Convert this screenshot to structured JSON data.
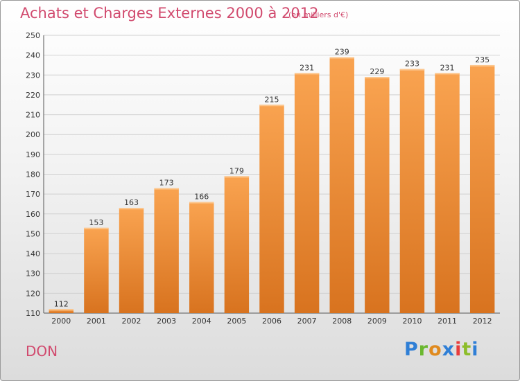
{
  "header": {
    "title": "Achats et Charges Externes 2000 à 2012",
    "unit": "(en milliers d'€)"
  },
  "footer": {
    "place": "DON",
    "logo": "Proxiti"
  },
  "colors": {
    "title": "#d14a6e",
    "bar_light": "#f9a350",
    "bar_dark": "#d8731f",
    "grid": "#d0d0d0"
  },
  "chart_data": {
    "type": "bar",
    "title": "Achats et Charges Externes 2000 à 2012",
    "xlabel": "",
    "ylabel": "",
    "categories": [
      "2000",
      "2001",
      "2002",
      "2003",
      "2004",
      "2005",
      "2006",
      "2007",
      "2008",
      "2009",
      "2010",
      "2011",
      "2012"
    ],
    "values": [
      112,
      153,
      163,
      173,
      166,
      179,
      215,
      231,
      239,
      229,
      233,
      231,
      235
    ],
    "ylim": [
      110,
      250
    ],
    "yticks": [
      110,
      120,
      130,
      140,
      150,
      160,
      170,
      180,
      190,
      200,
      210,
      220,
      230,
      240,
      250
    ],
    "grid": true,
    "data_labels": true
  }
}
